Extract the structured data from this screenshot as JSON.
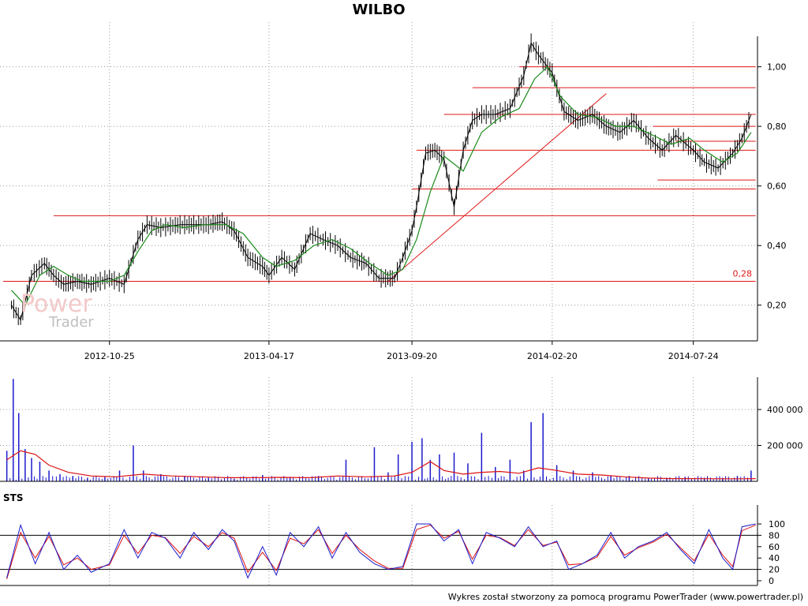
{
  "chart_data": [
    {
      "type": "line",
      "panel": "price",
      "title": "WILBO",
      "y_scale": "linear",
      "ylim": [
        0.08,
        1.15
      ],
      "y_ticks": [
        0.2,
        0.4,
        0.6,
        0.8,
        1.0
      ],
      "y_tick_labels": [
        "0,20",
        "0,40",
        "0,60",
        "0,80",
        "1,00"
      ],
      "x_tick_labels": [
        "2012-10-25",
        "2013-04-17",
        "2013-09-20",
        "2014-02-20",
        "2014-07-24"
      ],
      "grid": true,
      "annotations": [
        {
          "text": "0,28",
          "value": 0.28
        }
      ],
      "series": [
        {
          "kind": "close",
          "color": "#000000",
          "x": [
            "2012-07-10",
            "2012-07-20",
            "2012-08-01",
            "2012-08-15",
            "2012-08-25",
            "2012-09-05",
            "2012-09-20",
            "2012-10-05",
            "2012-10-25",
            "2012-11-10",
            "2012-11-25",
            "2012-12-05",
            "2012-12-20",
            "2013-01-10",
            "2013-01-25",
            "2013-02-10",
            "2013-02-25",
            "2013-03-10",
            "2013-03-25",
            "2013-04-10",
            "2013-04-17",
            "2013-05-01",
            "2013-05-15",
            "2013-06-01",
            "2013-06-15",
            "2013-07-01",
            "2013-07-15",
            "2013-08-01",
            "2013-08-15",
            "2013-09-01",
            "2013-09-10",
            "2013-09-20",
            "2013-09-25",
            "2013-10-05",
            "2013-10-15",
            "2013-10-25",
            "2013-11-05",
            "2013-11-15",
            "2013-11-25",
            "2013-12-05",
            "2013-12-20",
            "2014-01-05",
            "2014-01-20",
            "2014-01-28",
            "2014-02-05",
            "2014-02-20",
            "2014-03-05",
            "2014-03-20",
            "2014-04-05",
            "2014-04-20",
            "2014-05-05",
            "2014-05-20",
            "2014-06-05",
            "2014-06-20",
            "2014-07-05",
            "2014-07-24",
            "2014-08-05",
            "2014-08-20",
            "2014-09-05",
            "2014-09-15",
            "2014-09-25"
          ],
          "y": [
            0.2,
            0.15,
            0.3,
            0.34,
            0.3,
            0.27,
            0.28,
            0.27,
            0.29,
            0.27,
            0.42,
            0.47,
            0.46,
            0.47,
            0.47,
            0.47,
            0.48,
            0.45,
            0.36,
            0.33,
            0.3,
            0.36,
            0.32,
            0.44,
            0.42,
            0.4,
            0.36,
            0.34,
            0.29,
            0.29,
            0.36,
            0.45,
            0.53,
            0.71,
            0.72,
            0.69,
            0.53,
            0.72,
            0.82,
            0.84,
            0.84,
            0.86,
            0.97,
            1.08,
            1.04,
            0.98,
            0.85,
            0.82,
            0.84,
            0.8,
            0.78,
            0.82,
            0.76,
            0.72,
            0.77,
            0.72,
            0.68,
            0.66,
            0.71,
            0.76,
            0.84
          ]
        },
        {
          "kind": "moving average",
          "color": "#1a8a1a",
          "x": [
            "2012-07-10",
            "2012-07-25",
            "2012-08-10",
            "2012-08-25",
            "2012-09-10",
            "2012-09-25",
            "2012-10-10",
            "2012-10-25",
            "2012-11-10",
            "2012-11-25",
            "2012-12-10",
            "2012-12-25",
            "2013-01-15",
            "2013-02-05",
            "2013-03-01",
            "2013-03-20",
            "2013-04-10",
            "2013-04-25",
            "2013-05-15",
            "2013-06-05",
            "2013-06-25",
            "2013-07-15",
            "2013-08-05",
            "2013-08-25",
            "2013-09-10",
            "2013-09-25",
            "2013-10-10",
            "2013-10-25",
            "2013-11-15",
            "2013-12-05",
            "2013-12-25",
            "2014-01-15",
            "2014-02-01",
            "2014-02-15",
            "2014-03-01",
            "2014-03-20",
            "2014-04-10",
            "2014-04-30",
            "2014-05-20",
            "2014-06-10",
            "2014-06-30",
            "2014-07-20",
            "2014-08-05",
            "2014-08-25",
            "2014-09-10",
            "2014-09-25"
          ],
          "y": [
            0.25,
            0.2,
            0.3,
            0.33,
            0.3,
            0.28,
            0.28,
            0.28,
            0.3,
            0.38,
            0.45,
            0.47,
            0.46,
            0.47,
            0.47,
            0.44,
            0.36,
            0.33,
            0.35,
            0.4,
            0.42,
            0.39,
            0.34,
            0.3,
            0.32,
            0.42,
            0.58,
            0.7,
            0.65,
            0.78,
            0.83,
            0.86,
            0.96,
            1.0,
            0.9,
            0.84,
            0.83,
            0.8,
            0.8,
            0.77,
            0.74,
            0.76,
            0.72,
            0.68,
            0.71,
            0.78
          ]
        }
      ],
      "lines": [
        {
          "type": "horizontal",
          "y": 1.0,
          "x_start": "2014-01-15",
          "x_end": "2014-09-30"
        },
        {
          "type": "horizontal",
          "y": 0.93,
          "x_start": "2013-11-25",
          "x_end": "2014-09-30"
        },
        {
          "type": "horizontal",
          "y": 0.84,
          "x_start": "2013-10-25",
          "x_end": "2014-09-30"
        },
        {
          "type": "horizontal",
          "y": 0.8,
          "x_start": "2014-06-10",
          "x_end": "2014-09-30"
        },
        {
          "type": "horizontal",
          "y": 0.75,
          "x_start": "2014-07-05",
          "x_end": "2014-09-30"
        },
        {
          "type": "horizontal",
          "y": 0.72,
          "x_start": "2013-09-25",
          "x_end": "2014-09-30"
        },
        {
          "type": "horizontal",
          "y": 0.62,
          "x_start": "2014-06-15",
          "x_end": "2014-09-30"
        },
        {
          "type": "horizontal",
          "y": 0.59,
          "x_start": "2013-09-20",
          "x_end": "2014-09-30"
        },
        {
          "type": "horizontal",
          "y": 0.5,
          "x_start": "2012-08-25",
          "x_end": "2014-09-30"
        },
        {
          "type": "horizontal",
          "y": 0.28,
          "x_start": "2012-07-01",
          "x_end": "2014-09-30"
        },
        {
          "type": "trend",
          "x1": "2013-08-25",
          "y1": 0.28,
          "x2": "2014-04-20",
          "y2": 0.91
        }
      ]
    },
    {
      "type": "bar",
      "panel": "volume",
      "y_ticks": [
        200000,
        400000
      ],
      "y_tick_labels": [
        "200 000",
        "400 000"
      ],
      "ylim": [
        0,
        580000
      ],
      "grid": true,
      "series": [
        {
          "kind": "volume",
          "color": "#1a1acc",
          "x": [
            "2012-07-05",
            "2012-07-12",
            "2012-07-18",
            "2012-07-25",
            "2012-08-01",
            "2012-08-10",
            "2012-08-20",
            "2012-09-01",
            "2012-09-15",
            "2012-10-01",
            "2012-10-20",
            "2012-11-05",
            "2012-11-20",
            "2012-12-01",
            "2012-12-20",
            "2013-01-15",
            "2013-02-10",
            "2013-03-10",
            "2013-04-10",
            "2013-05-10",
            "2013-06-10",
            "2013-07-10",
            "2013-08-10",
            "2013-08-25",
            "2013-09-05",
            "2013-09-20",
            "2013-10-01",
            "2013-10-10",
            "2013-10-20",
            "2013-11-05",
            "2013-11-20",
            "2013-12-05",
            "2013-12-20",
            "2014-01-05",
            "2014-01-20",
            "2014-01-28",
            "2014-02-10",
            "2014-02-25",
            "2014-03-15",
            "2014-04-05",
            "2014-04-25",
            "2014-05-15",
            "2014-06-05",
            "2014-06-25",
            "2014-07-15",
            "2014-08-05",
            "2014-08-25",
            "2014-09-10",
            "2014-09-25"
          ],
          "y": [
            170000,
            570000,
            380000,
            180000,
            130000,
            110000,
            60000,
            40000,
            30000,
            20000,
            25000,
            60000,
            200000,
            60000,
            40000,
            30000,
            20000,
            15000,
            35000,
            25000,
            30000,
            120000,
            190000,
            50000,
            150000,
            220000,
            240000,
            120000,
            150000,
            160000,
            100000,
            270000,
            80000,
            120000,
            60000,
            330000,
            380000,
            90000,
            60000,
            50000,
            30000,
            30000,
            20000,
            20000,
            25000,
            20000,
            20000,
            30000,
            60000
          ]
        },
        {
          "kind": "volume average",
          "color": "#dd1111",
          "x": [
            "2012-07-05",
            "2012-07-20",
            "2012-08-05",
            "2012-08-20",
            "2012-09-10",
            "2012-10-05",
            "2012-11-01",
            "2012-12-01",
            "2013-01-01",
            "2013-02-01",
            "2013-03-01",
            "2013-04-01",
            "2013-05-01",
            "2013-06-01",
            "2013-07-01",
            "2013-08-01",
            "2013-09-01",
            "2013-09-20",
            "2013-10-10",
            "2013-10-25",
            "2013-11-15",
            "2013-12-05",
            "2013-12-25",
            "2014-01-15",
            "2014-02-05",
            "2014-02-25",
            "2014-03-20",
            "2014-04-15",
            "2014-05-10",
            "2014-06-05",
            "2014-07-01",
            "2014-07-24",
            "2014-08-20",
            "2014-09-15",
            "2014-09-30"
          ],
          "y": [
            120000,
            170000,
            150000,
            90000,
            50000,
            30000,
            25000,
            40000,
            30000,
            25000,
            20000,
            20000,
            22000,
            20000,
            30000,
            25000,
            30000,
            50000,
            110000,
            60000,
            40000,
            50000,
            55000,
            45000,
            75000,
            60000,
            40000,
            35000,
            25000,
            18000,
            15000,
            15000,
            14000,
            14000,
            15000
          ]
        }
      ]
    },
    {
      "type": "line",
      "panel": "STS",
      "title": "STS",
      "ylim": [
        0,
        100
      ],
      "y_ticks": [
        0,
        20,
        40,
        60,
        80,
        100
      ],
      "y_tick_labels": [
        "0",
        "20",
        "40",
        "60",
        "80",
        "100"
      ],
      "reference_lines": [
        20,
        80
      ],
      "series": [
        {
          "kind": "%K",
          "color": "#1a1acc",
          "x": [
            "2012-07-05",
            "2012-07-20",
            "2012-08-05",
            "2012-08-20",
            "2012-09-05",
            "2012-09-20",
            "2012-10-05",
            "2012-10-25",
            "2012-11-10",
            "2012-11-25",
            "2012-12-10",
            "2012-12-25",
            "2013-01-10",
            "2013-01-25",
            "2013-02-10",
            "2013-02-25",
            "2013-03-10",
            "2013-03-25",
            "2013-04-10",
            "2013-04-25",
            "2013-05-10",
            "2013-05-25",
            "2013-06-10",
            "2013-06-25",
            "2013-07-10",
            "2013-07-25",
            "2013-08-10",
            "2013-08-25",
            "2013-09-10",
            "2013-09-25",
            "2013-10-10",
            "2013-10-25",
            "2013-11-10",
            "2013-11-25",
            "2013-12-10",
            "2013-12-25",
            "2014-01-10",
            "2014-01-25",
            "2014-02-10",
            "2014-02-25",
            "2014-03-10",
            "2014-03-25",
            "2014-04-10",
            "2014-04-25",
            "2014-05-10",
            "2014-05-25",
            "2014-06-10",
            "2014-06-25",
            "2014-07-10",
            "2014-07-25",
            "2014-08-10",
            "2014-08-25",
            "2014-09-05",
            "2014-09-15",
            "2014-09-30"
          ],
          "y": [
            5,
            98,
            30,
            85,
            20,
            45,
            15,
            30,
            90,
            40,
            85,
            75,
            40,
            85,
            55,
            90,
            70,
            5,
            60,
            10,
            85,
            60,
            95,
            40,
            85,
            50,
            30,
            20,
            25,
            100,
            100,
            70,
            90,
            30,
            85,
            75,
            60,
            95,
            60,
            70,
            20,
            30,
            45,
            85,
            40,
            60,
            70,
            85,
            55,
            30,
            90,
            40,
            20,
            95,
            100
          ]
        },
        {
          "kind": "%D",
          "color": "#dd1111",
          "x": [
            "2012-07-05",
            "2012-07-20",
            "2012-08-05",
            "2012-08-20",
            "2012-09-05",
            "2012-09-20",
            "2012-10-05",
            "2012-10-25",
            "2012-11-10",
            "2012-11-25",
            "2012-12-10",
            "2012-12-25",
            "2013-01-10",
            "2013-01-25",
            "2013-02-10",
            "2013-02-25",
            "2013-03-10",
            "2013-03-25",
            "2013-04-10",
            "2013-04-25",
            "2013-05-10",
            "2013-05-25",
            "2013-06-10",
            "2013-06-25",
            "2013-07-10",
            "2013-07-25",
            "2013-08-10",
            "2013-08-25",
            "2013-09-10",
            "2013-09-25",
            "2013-10-10",
            "2013-10-25",
            "2013-11-10",
            "2013-11-25",
            "2013-12-10",
            "2013-12-25",
            "2014-01-10",
            "2014-01-25",
            "2014-02-10",
            "2014-02-25",
            "2014-03-10",
            "2014-03-25",
            "2014-04-10",
            "2014-04-25",
            "2014-05-10",
            "2014-05-25",
            "2014-06-10",
            "2014-06-25",
            "2014-07-10",
            "2014-07-25",
            "2014-08-10",
            "2014-08-25",
            "2014-09-05",
            "2014-09-15",
            "2014-09-30"
          ],
          "y": [
            3,
            85,
            40,
            78,
            28,
            40,
            20,
            28,
            80,
            48,
            80,
            76,
            48,
            78,
            60,
            85,
            75,
            15,
            50,
            18,
            75,
            65,
            90,
            48,
            80,
            55,
            35,
            22,
            22,
            90,
            98,
            75,
            87,
            38,
            80,
            76,
            62,
            90,
            62,
            68,
            28,
            30,
            42,
            78,
            45,
            58,
            68,
            82,
            58,
            35,
            82,
            45,
            25,
            88,
            98
          ]
        }
      ]
    }
  ],
  "footer": "Wykres został stworzony za pomocą programu PowerTrader (www.powertrader.pl)",
  "watermark": {
    "line1": "Power",
    "line2": "Trader"
  }
}
